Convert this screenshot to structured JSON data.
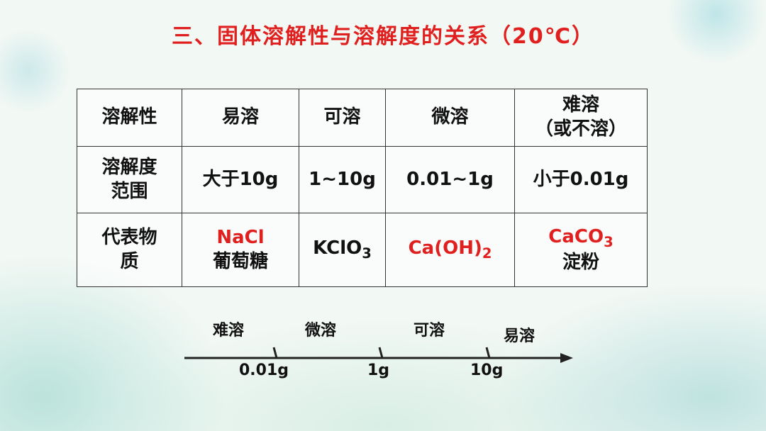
{
  "header": {
    "title": "三、固体溶解性与溶解度的关系（20℃）"
  },
  "table": {
    "rows": [
      [
        [
          "溶解性"
        ],
        [
          "易溶"
        ],
        [
          "可溶"
        ],
        [
          "微溶"
        ],
        [
          "难溶",
          "（或不溶）"
        ]
      ],
      [
        [
          "溶解度",
          "范围"
        ],
        [
          "大于10g"
        ],
        [
          "1~10g"
        ],
        [
          "0.01~1g"
        ],
        [
          "小于0.01g"
        ]
      ],
      [
        [
          "代表物",
          "质"
        ],
        [
          "NaCl",
          "葡萄糖"
        ],
        [
          {
            "text": "KClO",
            "sub": "3"
          }
        ],
        [
          {
            "text": "Ca(OH)",
            "sub": "2"
          }
        ],
        [
          {
            "text": "CaCO",
            "sub": "3"
          },
          "淀粉"
        ]
      ]
    ]
  },
  "number_line": {
    "regions": [
      "难溶",
      "微溶",
      "可溶",
      "易溶"
    ],
    "marks": [
      "0.01g",
      "1g",
      "10g"
    ]
  }
}
